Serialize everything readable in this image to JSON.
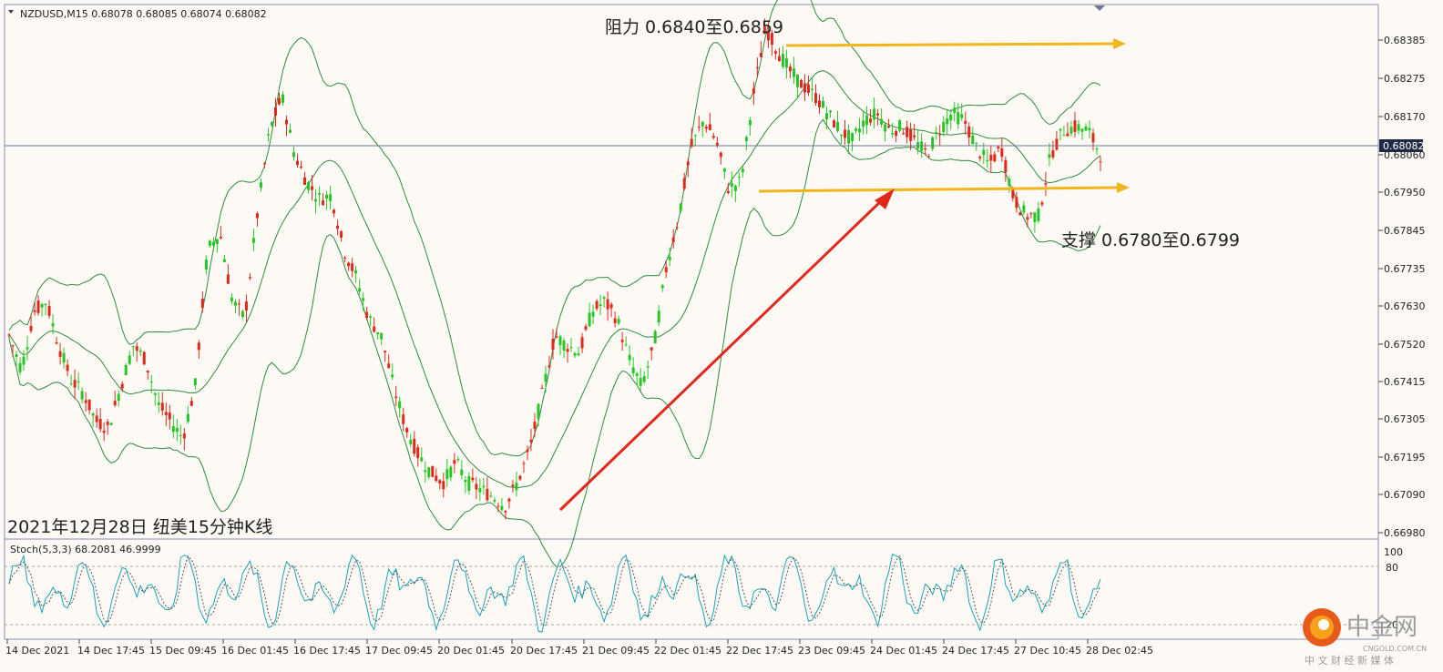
{
  "window": {
    "symbol_line": "NZDUSD,M15  0.68078 0.68085 0.68074 0.68082",
    "title_note": "2021年12月28日 纽美15分钟K线",
    "current_price": "0.68082"
  },
  "annotations": {
    "resistance": "阻力 0.6840至0.6859",
    "support": "支撑 0.6780至0.6799"
  },
  "stoch": {
    "label": "Stoch(5,3,3) 68.2081 46.9999",
    "levels": [
      "100",
      "80",
      "20"
    ]
  },
  "watermark": {
    "brand": "中金网",
    "url": "CNGOLD.COM.CN",
    "slogan": "中 文 财 经 新 媒 体"
  },
  "colors": {
    "up": "#e0291c",
    "down": "#27c627",
    "band": "#2e8b3e",
    "arrow": "#e0291c",
    "level": "#f2b51c",
    "stoch_main": "#1aa3b5",
    "stoch_signal": "#555555"
  },
  "chart_data": {
    "type": "line",
    "title": "NZDUSD M15",
    "y_ticks": [
      "0.68385",
      "0.68275",
      "0.68170",
      "0.68060",
      "0.67950",
      "0.67845",
      "0.67735",
      "0.67630",
      "0.67520",
      "0.67415",
      "0.67305",
      "0.67195",
      "0.67090",
      "0.66980"
    ],
    "ylim": [
      0.6696,
      0.68515
    ],
    "x_ticks": [
      "14 Dec 2021",
      "14 Dec 17:45",
      "15 Dec 09:45",
      "16 Dec 01:45",
      "16 Dec 17:45",
      "17 Dec 09:45",
      "20 Dec 01:45",
      "20 Dec 17:45",
      "21 Dec 09:45",
      "22 Dec 01:45",
      "22 Dec 17:45",
      "23 Dec 09:45",
      "24 Dec 01:45",
      "24 Dec 17:45",
      "27 Dec 10:45",
      "28 Dec 02:45"
    ],
    "series": [
      {
        "values": [
          0.6755,
          0.6745,
          0.6762,
          0.6765,
          0.6752,
          0.6742,
          0.6738,
          0.673,
          0.6728,
          0.674,
          0.6752,
          0.6748,
          0.6735,
          0.673,
          0.6725,
          0.674,
          0.678,
          0.6785,
          0.6765,
          0.676,
          0.679,
          0.6815,
          0.6825,
          0.6808,
          0.68,
          0.6795,
          0.6796,
          0.678,
          0.6772,
          0.676,
          0.6755,
          0.674,
          0.6728,
          0.672,
          0.6715,
          0.6712,
          0.6718,
          0.6712,
          0.671,
          0.6708,
          0.6705,
          0.6712,
          0.6722,
          0.6738,
          0.6755,
          0.6752,
          0.675,
          0.6762,
          0.6765,
          0.676,
          0.6748,
          0.674,
          0.6752,
          0.6775,
          0.679,
          0.681,
          0.6818,
          0.6812,
          0.6798,
          0.68,
          0.6825,
          0.6845,
          0.6838,
          0.6832,
          0.6828,
          0.6825,
          0.682,
          0.6815,
          0.6812,
          0.6818,
          0.682,
          0.6815,
          0.6816,
          0.6812,
          0.6808,
          0.6815,
          0.682,
          0.6818,
          0.681,
          0.6805,
          0.681,
          0.6795,
          0.679,
          0.679,
          0.6808,
          0.6815,
          0.6816,
          0.6815,
          0.6808
        ]
      }
    ]
  }
}
